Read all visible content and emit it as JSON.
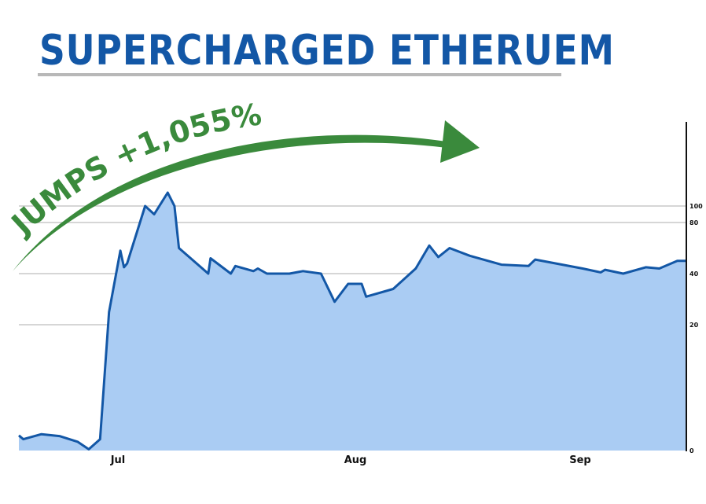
{
  "chart_data": {
    "type": "area",
    "title": "SUPERCHARGED ETHERUEM",
    "annotation": "JUMPS +1,055%",
    "x_ticks": [
      "Jul",
      "Aug",
      "Sep"
    ],
    "y_ticks": [
      0,
      20,
      40,
      80,
      100
    ],
    "y_scale": "log-like",
    "grid": "horizontal",
    "colors": {
      "fill": "#aaccf3",
      "line": "#1357a6",
      "grid": "#c8c8c8",
      "title": "#1357a6",
      "annotation": "#3a8a3c"
    },
    "series": [
      {
        "values": [
          [
            0.0,
            2.4
          ],
          [
            0.01,
            1.8
          ],
          [
            0.05,
            2.6
          ],
          [
            0.09,
            2.3
          ],
          [
            0.13,
            1.4
          ],
          [
            0.155,
            0.2
          ],
          [
            0.18,
            1.8
          ],
          [
            0.2,
            25
          ],
          [
            0.225,
            58
          ],
          [
            0.233,
            45
          ],
          [
            0.24,
            48
          ],
          [
            0.28,
            100
          ],
          [
            0.3,
            90
          ],
          [
            0.33,
            115
          ],
          [
            0.345,
            100
          ],
          [
            0.355,
            60
          ],
          [
            0.42,
            40
          ],
          [
            0.425,
            52
          ],
          [
            0.47,
            40
          ],
          [
            0.48,
            46
          ],
          [
            0.52,
            42
          ],
          [
            0.53,
            44
          ],
          [
            0.55,
            40
          ],
          [
            0.6,
            40
          ],
          [
            0.63,
            42
          ],
          [
            0.67,
            40
          ],
          [
            0.7,
            29
          ],
          [
            0.73,
            36
          ],
          [
            0.76,
            36
          ],
          [
            0.77,
            31
          ],
          [
            0.83,
            34
          ],
          [
            0.88,
            44
          ],
          [
            0.91,
            62
          ],
          [
            0.93,
            53
          ],
          [
            0.955,
            60
          ],
          [
            1.0,
            54
          ],
          [
            1.07,
            47
          ],
          [
            1.13,
            46
          ],
          [
            1.145,
            51
          ],
          [
            1.25,
            44
          ],
          [
            1.29,
            41
          ],
          [
            1.3,
            43
          ],
          [
            1.34,
            40
          ],
          [
            1.39,
            45
          ],
          [
            1.42,
            44
          ],
          [
            1.46,
            50
          ],
          [
            1.48,
            50
          ]
        ]
      }
    ]
  }
}
